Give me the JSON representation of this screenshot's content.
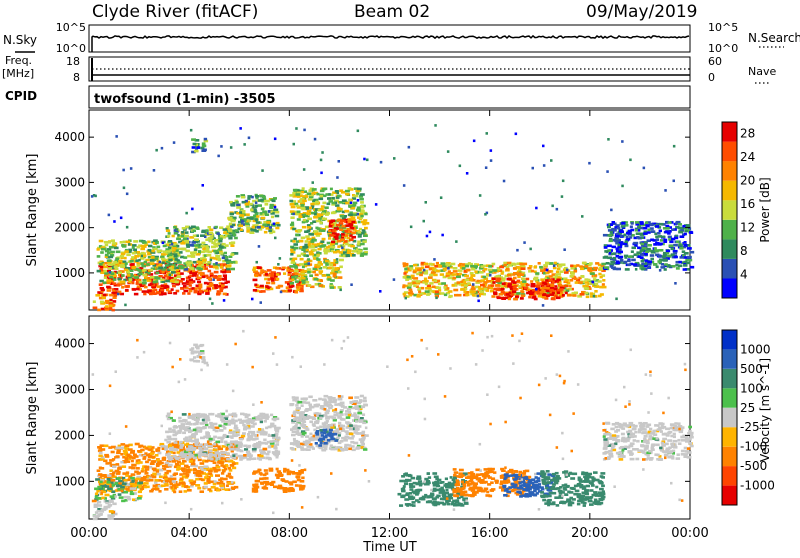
{
  "header": {
    "station": "Clyde River (fitACF)",
    "beam": "Beam 02",
    "date": "09/May/2019"
  },
  "nsky_panel": {
    "left_label": "N.Sky",
    "right_label": "N.Search",
    "left_ticks": [
      "10^5",
      "10^0"
    ],
    "right_ticks": [
      "10^5",
      "10^0"
    ]
  },
  "freq_panel": {
    "left_label_1": "Freq.",
    "left_label_2": "[MHz]",
    "right_label": "Nave",
    "left_ticks": [
      "18",
      "8"
    ],
    "right_ticks": [
      "60",
      "0"
    ]
  },
  "cpid": {
    "label": "CPID",
    "program": "twofsound (1-min) -3505"
  },
  "colors": {
    "power_scale": [
      "#0000ff",
      "#2a50b4",
      "#2f8a5e",
      "#4fb14a",
      "#c9dc3c",
      "#f5b800",
      "#ff8200",
      "#ff4d00",
      "#e60000"
    ],
    "velocity_scale": [
      "#0030c8",
      "#2a62b8",
      "#3a8a6e",
      "#4cc04c",
      "#c8c8c8",
      "#ffb400",
      "#ff8200",
      "#ff4400",
      "#e60000"
    ],
    "ground_scatter": "#bebebe"
  },
  "chart_data": [
    {
      "type": "heatmap",
      "title": "Power",
      "xlabel": "Time UT",
      "ylabel": "Slant Range [km]",
      "x_ticks": [
        "00:00",
        "04:00",
        "08:00",
        "12:00",
        "16:00",
        "20:00",
        "00:00"
      ],
      "xlim": [
        0,
        24
      ],
      "y_ticks": [
        1000,
        2000,
        3000,
        4000
      ],
      "ylim": [
        180,
        4600
      ],
      "colorbar": {
        "label": "Power [dB]",
        "ticks": [
          4,
          8,
          12,
          16,
          20,
          24,
          28
        ],
        "range": [
          0,
          30
        ]
      },
      "regions": [
        {
          "t0": 0.3,
          "t1": 5.5,
          "r0": 550,
          "r1": 1250,
          "level": 26
        },
        {
          "t0": 0.3,
          "t1": 3.5,
          "r0": 800,
          "r1": 1750,
          "level": 14
        },
        {
          "t0": 3.0,
          "t1": 5.8,
          "r0": 1100,
          "r1": 2050,
          "level": 12
        },
        {
          "t0": 5.5,
          "t1": 7.5,
          "r0": 1900,
          "r1": 2750,
          "level": 12
        },
        {
          "t0": 6.5,
          "t1": 8.5,
          "r0": 600,
          "r1": 1150,
          "level": 24
        },
        {
          "t0": 8.0,
          "t1": 10.0,
          "r0": 700,
          "r1": 1350,
          "level": 16
        },
        {
          "t0": 8.0,
          "t1": 11.0,
          "r0": 1400,
          "r1": 2900,
          "level": 14
        },
        {
          "t0": 9.5,
          "t1": 10.5,
          "r0": 1700,
          "r1": 2200,
          "level": 26
        },
        {
          "t0": 12.5,
          "t1": 20.5,
          "r0": 500,
          "r1": 1250,
          "level": 18
        },
        {
          "t0": 16.0,
          "t1": 19.0,
          "r0": 450,
          "r1": 900,
          "level": 26
        },
        {
          "t0": 20.5,
          "t1": 24.0,
          "r0": 1100,
          "r1": 2150,
          "level": 6
        },
        {
          "t0": 0.1,
          "t1": 1.0,
          "r0": 200,
          "r1": 550,
          "level": 22
        },
        {
          "t0": 4.0,
          "t1": 4.6,
          "r0": 3700,
          "r1": 4000,
          "level": 8
        }
      ]
    },
    {
      "type": "heatmap",
      "title": "Velocity",
      "xlabel": "Time UT",
      "ylabel": "Slant Range [km]",
      "x_ticks": [
        "00:00",
        "04:00",
        "08:00",
        "12:00",
        "16:00",
        "20:00",
        "00:00"
      ],
      "xlim": [
        0,
        24
      ],
      "y_ticks": [
        1000,
        2000,
        3000,
        4000
      ],
      "ylim": [
        180,
        4600
      ],
      "colorbar": {
        "label": "Velocity [m s^-1]",
        "ticks": [
          "1000",
          "500",
          "100",
          "25",
          "-25",
          "-100",
          "-500",
          "-1000"
        ]
      },
      "regions": [
        {
          "t0": 0.3,
          "t1": 5.8,
          "r0": 800,
          "r1": 1850,
          "level": -150
        },
        {
          "t0": 0.2,
          "t1": 2.0,
          "r0": 600,
          "r1": 1100,
          "level": 40
        },
        {
          "t0": 3.0,
          "t1": 7.5,
          "r0": 1500,
          "r1": 2500,
          "level": 0
        },
        {
          "t0": 6.5,
          "t1": 8.5,
          "r0": 800,
          "r1": 1300,
          "level": -300
        },
        {
          "t0": 8.0,
          "t1": 11.0,
          "r0": 1700,
          "r1": 2900,
          "level": 0
        },
        {
          "t0": 9.0,
          "t1": 9.8,
          "r0": 1800,
          "r1": 2150,
          "level": 600
        },
        {
          "t0": 12.3,
          "t1": 15.0,
          "r0": 500,
          "r1": 1200,
          "level": 300
        },
        {
          "t0": 14.5,
          "t1": 17.5,
          "r0": 700,
          "r1": 1300,
          "level": -300
        },
        {
          "t0": 16.5,
          "t1": 18.5,
          "r0": 700,
          "r1": 1200,
          "level": 700
        },
        {
          "t0": 18.0,
          "t1": 20.5,
          "r0": 500,
          "r1": 1250,
          "level": 300
        },
        {
          "t0": 20.5,
          "t1": 24.0,
          "r0": 1500,
          "r1": 2300,
          "level": 0
        },
        {
          "t0": 0.1,
          "t1": 1.0,
          "r0": 200,
          "r1": 600,
          "level": 0
        },
        {
          "t0": 4.0,
          "t1": 4.6,
          "r0": 3600,
          "r1": 4000,
          "level": 0
        }
      ]
    }
  ]
}
